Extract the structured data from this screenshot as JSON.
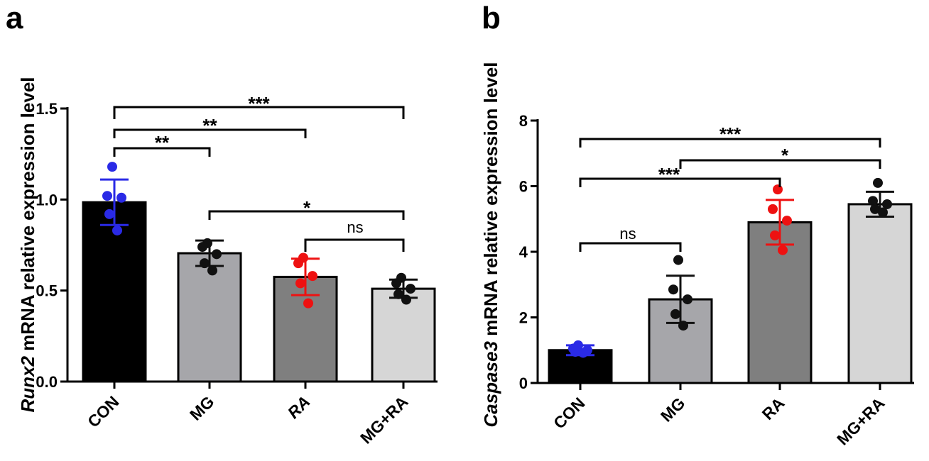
{
  "chart_data": [
    {
      "panel": "a",
      "type": "bar",
      "ylabel_italic": "Runx2",
      "ylabel_rest": " mRNA relative expression level",
      "ylim": [
        0,
        1.5
      ],
      "yticks": [
        "0.0",
        "0.5",
        "1.0",
        "1.5"
      ],
      "ytick_values": [
        0,
        0.5,
        1.0,
        1.5
      ],
      "categories": [
        "CON",
        "MG",
        "RA",
        "MG+RA"
      ],
      "italic_categories": [
        "RA"
      ],
      "values": [
        0.985,
        0.705,
        0.575,
        0.51
      ],
      "errors": [
        0.125,
        0.07,
        0.1,
        0.05
      ],
      "points": [
        [
          1.18,
          1.02,
          1.01,
          0.92,
          0.83
        ],
        [
          0.76,
          0.74,
          0.7,
          0.65,
          0.61
        ],
        [
          0.68,
          0.65,
          0.58,
          0.54,
          0.43
        ],
        [
          0.57,
          0.54,
          0.51,
          0.48,
          0.45
        ]
      ],
      "bar_colors": [
        "#000000",
        "#a6a6aa",
        "#7f7f7f",
        "#d6d6d6"
      ],
      "point_colors": [
        "#2a2ae6",
        "#111111",
        "#ee1111",
        "#111111"
      ],
      "error_colors": [
        "#2a2ae6",
        "#111111",
        "#ee1111",
        "#111111"
      ],
      "comparisons": [
        {
          "from": 0,
          "to": 3,
          "label": "***"
        },
        {
          "from": 0,
          "to": 2,
          "label": "**"
        },
        {
          "from": 0,
          "to": 1,
          "label": "**"
        },
        {
          "from": 1,
          "to": 3,
          "label": "*"
        },
        {
          "from": 2,
          "to": 3,
          "label": "ns"
        }
      ]
    },
    {
      "panel": "b",
      "type": "bar",
      "ylabel_italic": "Caspase3",
      "ylabel_rest": " mRNA relative expression level",
      "ylim": [
        0,
        8
      ],
      "yticks": [
        "0",
        "2",
        "4",
        "6",
        "8"
      ],
      "ytick_values": [
        0,
        2,
        4,
        6,
        8
      ],
      "categories": [
        "CON",
        "MG",
        "RA",
        "MG+RA"
      ],
      "italic_categories": [],
      "values": [
        1.0,
        2.55,
        4.9,
        5.45
      ],
      "errors": [
        0.15,
        0.72,
        0.68,
        0.38
      ],
      "points": [
        [
          1.15,
          1.05,
          1.0,
          0.95,
          0.92
        ],
        [
          3.75,
          2.85,
          2.55,
          2.1,
          1.75
        ],
        [
          5.9,
          5.3,
          4.95,
          4.5,
          4.05
        ],
        [
          6.1,
          5.55,
          5.45,
          5.3,
          5.2
        ]
      ],
      "bar_colors": [
        "#000000",
        "#a6a6aa",
        "#7f7f7f",
        "#d6d6d6"
      ],
      "point_colors": [
        "#2a2ae6",
        "#111111",
        "#ee1111",
        "#111111"
      ],
      "error_colors": [
        "#2a2ae6",
        "#111111",
        "#ee1111",
        "#111111"
      ],
      "comparisons": [
        {
          "from": 0,
          "to": 3,
          "label": "***"
        },
        {
          "from": 1,
          "to": 3,
          "label": "*"
        },
        {
          "from": 0,
          "to": 2,
          "label": "***"
        },
        {
          "from": 0,
          "to": 1,
          "label": "ns"
        }
      ]
    }
  ]
}
